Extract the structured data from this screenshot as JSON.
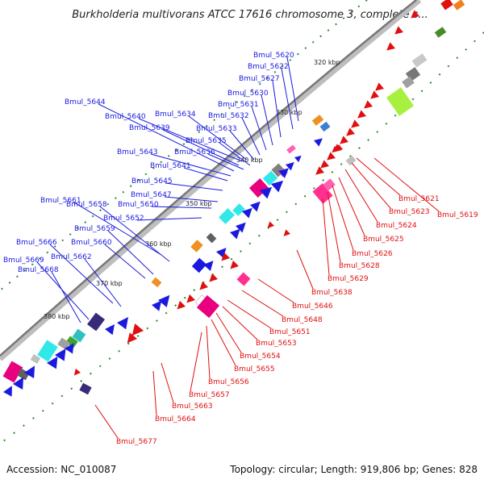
{
  "title": "Burkholderia multivorans ATCC 17616 chromosome 3, complete s...",
  "footer": {
    "accession": "Accession: NC_010087",
    "summary": "Topology: circular; Length: 919,806 bp; Genes: 828"
  },
  "ticks": [
    "320 kbp",
    "330 kbp",
    "340 kbp",
    "350 kbp",
    "360 kbp",
    "370 kbp",
    "380 kbp"
  ],
  "forward_genes": [
    "Bmul_5620",
    "Bmul_5622",
    "Bmul_5627",
    "Bmul_5630",
    "Bmul_5631",
    "Bmul_5632",
    "Bmul_5633",
    "Bmul_5634",
    "Bmul_5635",
    "Bmul_5636",
    "Bmul_5639",
    "Bmul_5640",
    "Bmul_5641",
    "Bmul_5643",
    "Bmul_5644",
    "Bmul_5645",
    "Bmul_5647",
    "Bmul_5650",
    "Bmul_5652",
    "Bmul_5658",
    "Bmul_5659",
    "Bmul_5660",
    "Bmul_5661",
    "Bmul_5662",
    "Bmul_5666",
    "Bmul_5668",
    "Bmul_5669"
  ],
  "reverse_genes": [
    "Bmul_5619",
    "Bmul_5621",
    "Bmul_5623",
    "Bmul_5624",
    "Bmul_5625",
    "Bmul_5626",
    "Bmul_5628",
    "Bmul_5629",
    "Bmul_5638",
    "Bmul_5646",
    "Bmul_5648",
    "Bmul_5651",
    "Bmul_5653",
    "Bmul_5654",
    "Bmul_5655",
    "Bmul_5656",
    "Bmul_5657",
    "Bmul_5663",
    "Bmul_5664",
    "Bmul_5677"
  ],
  "colors": {
    "forward": "#1a1adf",
    "reverse": "#e01010",
    "backbone": "#888888"
  }
}
